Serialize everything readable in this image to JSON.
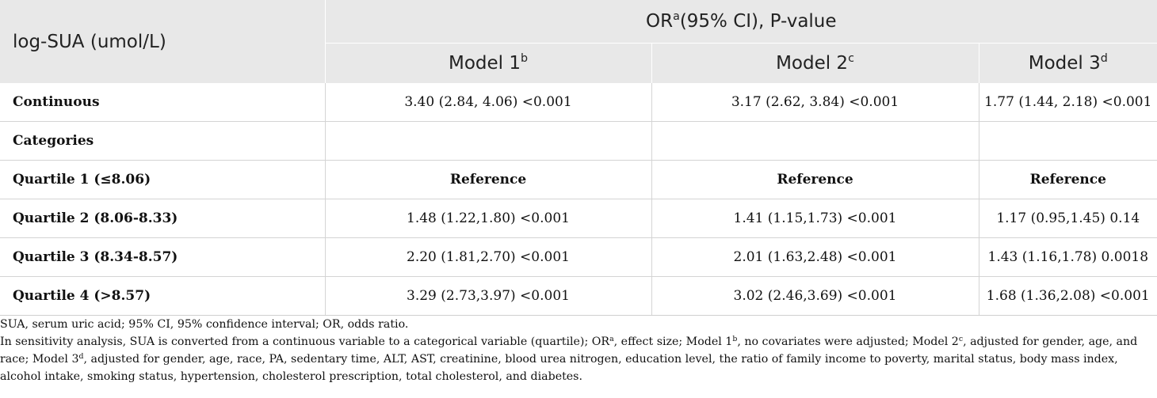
{
  "table": {
    "header": {
      "row_label": "log-SUA (umol/L)",
      "group_main": "OR",
      "group_sup": "a",
      "group_rest": "(95% CI), P-value",
      "models": [
        {
          "label": "Model 1",
          "sup": "b"
        },
        {
          "label": "Model 2",
          "sup": "c"
        },
        {
          "label": "Model 3",
          "sup": "d"
        }
      ]
    },
    "rows": [
      {
        "label": "Continuous",
        "values": [
          "3.40 (2.84, 4.06) <0.001",
          "3.17 (2.62, 3.84) <0.001",
          "1.77 (1.44, 2.18) <0.001"
        ],
        "bold_values": false
      },
      {
        "label": "Categories",
        "values": [
          "",
          "",
          ""
        ],
        "bold_values": false
      },
      {
        "label": "Quartile 1 (≤8.06)",
        "values": [
          "Reference",
          "Reference",
          "Reference"
        ],
        "bold_values": true
      },
      {
        "label": "Quartile 2 (8.06-8.33)",
        "values": [
          "1.48 (1.22,1.80) <0.001",
          "1.41 (1.15,1.73) <0.001",
          "1.17 (0.95,1.45) 0.14"
        ],
        "bold_values": false
      },
      {
        "label": "Quartile 3 (8.34-8.57)",
        "values": [
          "2.20 (1.81,2.70) <0.001",
          "2.01 (1.63,2.48) <0.001",
          "1.43 (1.16,1.78) 0.0018"
        ],
        "bold_values": false
      },
      {
        "label": "Quartile 4 (>8.57)",
        "values": [
          "3.29 (2.73,3.97) <0.001",
          "3.02 (2.46,3.69) <0.001",
          "1.68 (1.36,2.08) <0.001"
        ],
        "bold_values": false
      }
    ]
  },
  "footnotes": {
    "line1": "SUA, serum uric acid; 95% CI, 95% confidence interval; OR, odds ratio.",
    "line2": {
      "p1": "In sensitivity analysis, SUA is converted from a continuous variable to a categorical variable (quartile); OR",
      "s1": "a",
      "p2": ", effect size; Model 1",
      "s2": "b",
      "p3": ", no covariates were adjusted; Model 2",
      "s3": "c",
      "p4": ", adjusted for gender, age, and race; Model 3",
      "s4": "d",
      "p5": ", adjusted for gender, age, race, PA, sedentary time, ALT, AST, creatinine, blood urea nitrogen, education level, the ratio of family income to poverty, marital status, body mass index, alcohol intake, smoking status, hypertension, cholesterol prescription, total cholesterol, and diabetes."
    }
  }
}
